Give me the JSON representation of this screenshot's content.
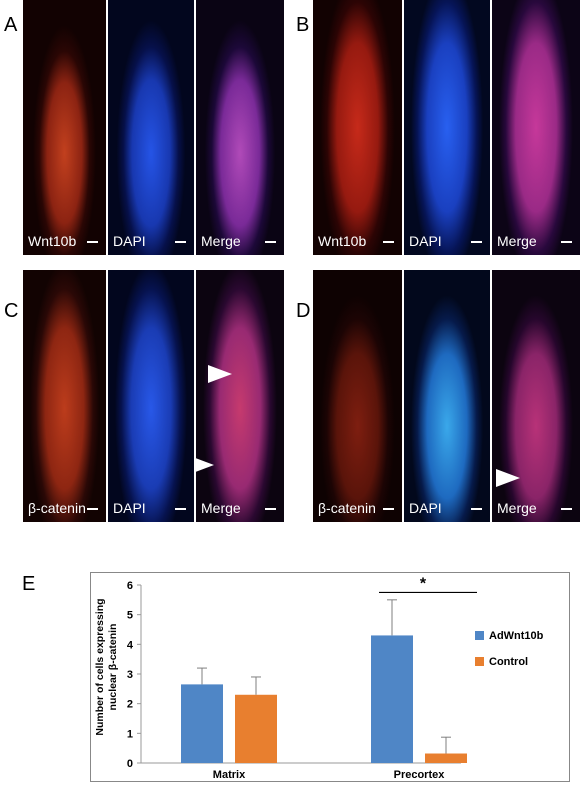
{
  "figure": {
    "panel_labels": [
      "A",
      "B",
      "C",
      "D",
      "E"
    ],
    "row_A": {
      "channels": [
        "Wnt10b",
        "DAPI",
        "Merge"
      ]
    },
    "row_B": {
      "channels": [
        "Wnt10b",
        "DAPI",
        "Merge"
      ]
    },
    "row_C": {
      "channels": [
        "β-catenin",
        "DAPI",
        "Merge"
      ]
    },
    "row_D": {
      "channels": [
        "β-catenin",
        "DAPI",
        "Merge"
      ]
    },
    "colors": {
      "red_channel": "#b02515",
      "blue_channel": "#1c3fd0",
      "merge": "#8a2aa0"
    }
  },
  "chart_data": {
    "type": "bar",
    "categories": [
      "Matrix",
      "Precortex"
    ],
    "series": [
      {
        "name": "AdWnt10b",
        "values": [
          2.65,
          4.3
        ],
        "errors": [
          0.55,
          1.2
        ],
        "color": "#4f86c6"
      },
      {
        "name": "Control",
        "values": [
          2.3,
          0.32
        ],
        "errors": [
          0.6,
          0.55
        ],
        "color": "#e87f2f"
      }
    ],
    "ylabel": "Number of cells expressing nuclear β-catenin",
    "ylim": [
      0,
      6
    ],
    "yticks": [
      "0",
      "1",
      "2",
      "3",
      "4",
      "5",
      "6"
    ],
    "legend": "right",
    "significance": "*"
  }
}
